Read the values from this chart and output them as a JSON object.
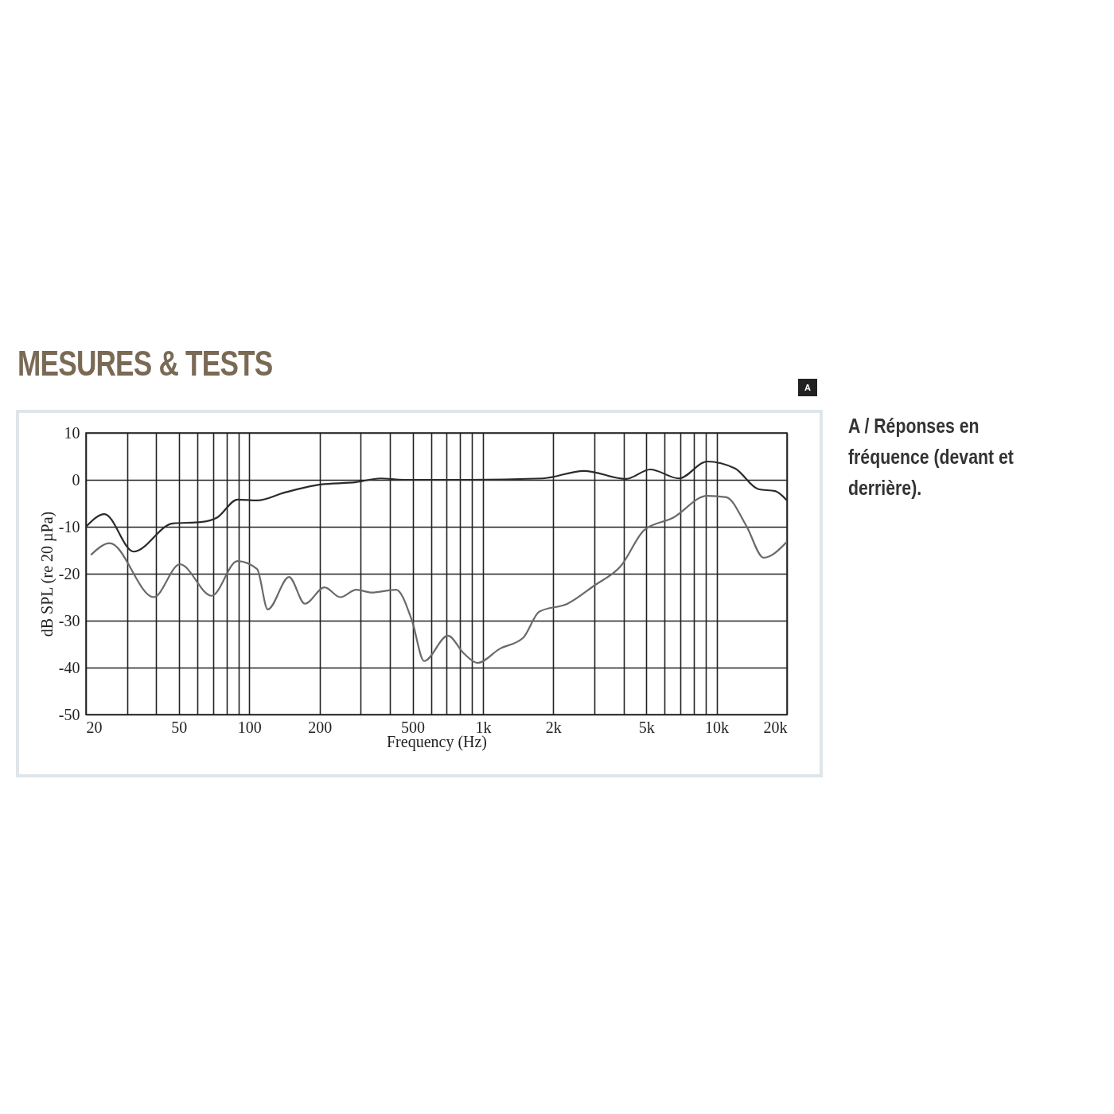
{
  "chart_data": {
    "type": "line",
    "title": "MESURES & TESTS",
    "xlabel": "Frequency (Hz)",
    "ylabel": "dB SPL (re 20 µPa)",
    "annotations": [
      "A",
      "A / Réponses en fréquence (devant et derrière)."
    ],
    "log": "x",
    "grid": true,
    "legend": false,
    "marker": "none",
    "line_style": "solid",
    "xlim": [
      20,
      20000
    ],
    "ylim": [
      -50,
      10
    ],
    "xticks": [
      20,
      {
        "value": 30,
        "label": null
      },
      {
        "value": 40,
        "label": null
      },
      50,
      {
        "value": 60,
        "label": null
      },
      {
        "value": 70,
        "label": null
      },
      {
        "value": 80,
        "label": null
      },
      {
        "value": 90,
        "label": null
      },
      100,
      200,
      {
        "value": 300,
        "label": null
      },
      {
        "value": 400,
        "label": null
      },
      500,
      {
        "value": 600,
        "label": null
      },
      {
        "value": 700,
        "label": null
      },
      {
        "value": 800,
        "label": null
      },
      {
        "value": 900,
        "label": null
      },
      {
        "value": 1000,
        "label": "1k"
      },
      {
        "value": 2000,
        "label": "2k"
      },
      {
        "value": 3000,
        "label": null
      },
      {
        "value": 4000,
        "label": null
      },
      {
        "value": 5000,
        "label": "5k"
      },
      {
        "value": 6000,
        "label": null
      },
      {
        "value": 7000,
        "label": null
      },
      {
        "value": 8000,
        "label": null
      },
      {
        "value": 9000,
        "label": null
      },
      {
        "value": 10000,
        "label": "10k"
      },
      {
        "value": 20000,
        "label": "20k"
      }
    ],
    "yticks": [
      -50,
      -40,
      -30,
      -20,
      -10,
      0,
      10
    ],
    "series": [
      {
        "color": "#2b2b2b",
        "x": [
          20,
          24,
          32,
          47,
          62,
          73,
          89,
          108,
          142,
          202,
          287,
          364,
          460,
          855,
          1800,
          2700,
          4100,
          5200,
          6900,
          9100,
          12000,
          15100,
          17800,
          20000
        ],
        "values": [
          -10,
          -7.3,
          -15.3,
          -9.3,
          -9,
          -8,
          -4.2,
          -4.4,
          -2.7,
          -1,
          -0.5,
          0.3,
          0,
          0,
          0.3,
          1.9,
          0.2,
          2.2,
          0.3,
          3.9,
          2.4,
          -2,
          -2.4,
          -4.4
        ]
      },
      {
        "color": "#6a6a6a",
        "x": [
          21,
          25.3,
          39,
          50.5,
          69,
          89,
          108,
          120,
          148,
          173,
          210,
          245,
          287,
          334,
          425,
          497,
          560,
          708,
          829,
          948,
          1180,
          1490,
          1740,
          2300,
          3000,
          3900,
          4900,
          6500,
          9100,
          11000,
          13400,
          15900,
          20000
        ],
        "values": [
          -16,
          -13.5,
          -25,
          -18,
          -24.7,
          -17.3,
          -19,
          -27.6,
          -20.7,
          -26.4,
          -22.9,
          -25,
          -23.4,
          -24,
          -23.4,
          -30,
          -38.6,
          -33.2,
          -37,
          -39,
          -36,
          -33.6,
          -28.1,
          -26.4,
          -22.5,
          -18.3,
          -10.7,
          -8.1,
          -3.4,
          -3.7,
          -9.8,
          -16.6,
          -13.2
        ]
      }
    ]
  }
}
